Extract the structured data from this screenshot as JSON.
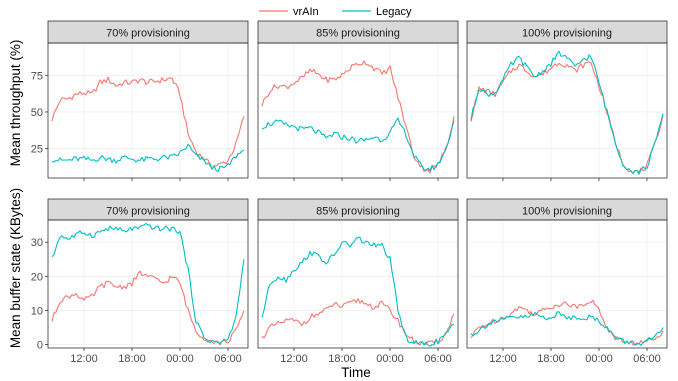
{
  "chart_data": {
    "type": "line",
    "facet_layout": "2 rows x 3 columns, shared x axis",
    "legend": {
      "placement": "top-center",
      "entries": [
        {
          "name": "vrAIn",
          "color": "#F8766D"
        },
        {
          "name": "Legacy",
          "color": "#00BFC4"
        }
      ]
    },
    "xlabel": "Time",
    "x_ticks": [
      "12:00",
      "18:00",
      "00:00",
      "06:00"
    ],
    "x_range_hours": [
      7.5,
      32.5
    ],
    "x_unit_note": "hours from 00:00 on day 1; 24 = 00:00 next day",
    "rows": [
      {
        "ylabel": "Mean throughput (%)",
        "ylim": [
          5,
          97
        ],
        "y_ticks": [
          25,
          50,
          75
        ],
        "panels": [
          {
            "strip": "70% provisioning",
            "series": [
              {
                "name": "vrAIn",
                "x": [
                  8,
                  9,
                  10,
                  11,
                  12,
                  13,
                  14,
                  15,
                  16,
                  17,
                  18,
                  19,
                  20,
                  21,
                  22,
                  23,
                  24,
                  25,
                  26,
                  27,
                  28,
                  29,
                  30,
                  31,
                  32
                ],
                "y": [
                  45,
                  58,
                  59,
                  62,
                  63,
                  62,
                  70,
                  72,
                  68,
                  70,
                  70,
                  72,
                  70,
                  71,
                  72,
                  73,
                  62,
                  35,
                  23,
                  18,
                  13,
                  14,
                  17,
                  28,
                  47
                ]
              },
              {
                "name": "Legacy",
                "x": [
                  8,
                  9,
                  10,
                  11,
                  12,
                  13,
                  14,
                  15,
                  16,
                  17,
                  18,
                  19,
                  20,
                  21,
                  22,
                  23,
                  24,
                  25,
                  26,
                  27,
                  28,
                  29,
                  30,
                  31,
                  32
                ],
                "y": [
                  18,
                  17,
                  17,
                  18,
                  18,
                  17,
                  19,
                  18,
                  17,
                  19,
                  18,
                  17,
                  18,
                  18,
                  19,
                  19,
                  22,
                  27,
                  20,
                  17,
                  12,
                  11,
                  13,
                  20,
                  24
                ]
              }
            ]
          },
          {
            "strip": "85% provisioning",
            "series": [
              {
                "name": "vrAIn",
                "x": [
                  8,
                  9,
                  10,
                  11,
                  12,
                  13,
                  14,
                  15,
                  16,
                  17,
                  18,
                  19,
                  20,
                  21,
                  22,
                  23,
                  24,
                  25,
                  26,
                  27,
                  28,
                  29,
                  30,
                  31,
                  32
                ],
                "y": [
                  55,
                  65,
                  68,
                  67,
                  70,
                  73,
                  78,
                  76,
                  72,
                  72,
                  75,
                  80,
                  83,
                  84,
                  80,
                  76,
                  80,
                  60,
                  40,
                  20,
                  12,
                  10,
                  14,
                  25,
                  47
                ]
              },
              {
                "name": "Legacy",
                "x": [
                  8,
                  9,
                  10,
                  11,
                  12,
                  13,
                  14,
                  15,
                  16,
                  17,
                  18,
                  19,
                  20,
                  21,
                  22,
                  23,
                  24,
                  25,
                  26,
                  27,
                  28,
                  29,
                  30,
                  31,
                  32
                ],
                "y": [
                  40,
                  42,
                  43,
                  41,
                  40,
                  38,
                  39,
                  36,
                  32,
                  35,
                  33,
                  32,
                  30,
                  31,
                  33,
                  31,
                  36,
                  44,
                  35,
                  20,
                  12,
                  11,
                  14,
                  25,
                  44
                ]
              }
            ]
          },
          {
            "strip": "100% provisioning",
            "series": [
              {
                "name": "vrAIn",
                "x": [
                  8,
                  9,
                  10,
                  11,
                  12,
                  13,
                  14,
                  15,
                  16,
                  17,
                  18,
                  19,
                  20,
                  21,
                  22,
                  23,
                  24,
                  25,
                  26,
                  27,
                  28,
                  29,
                  30,
                  31,
                  32
                ],
                "y": [
                  45,
                  66,
                  64,
                  62,
                  70,
                  78,
                  82,
                  78,
                  74,
                  76,
                  80,
                  84,
                  82,
                  78,
                  82,
                  84,
                  68,
                  50,
                  30,
                  15,
                  10,
                  9,
                  13,
                  28,
                  48
                ]
              },
              {
                "name": "Legacy",
                "x": [
                  8,
                  9,
                  10,
                  11,
                  12,
                  13,
                  14,
                  15,
                  16,
                  17,
                  18,
                  19,
                  20,
                  21,
                  22,
                  23,
                  24,
                  25,
                  26,
                  27,
                  28,
                  29,
                  30,
                  31,
                  32
                ],
                "y": [
                  45,
                  67,
                  62,
                  63,
                  72,
                  82,
                  87,
                  80,
                  74,
                  78,
                  83,
                  90,
                  87,
                  80,
                  86,
                  88,
                  70,
                  50,
                  30,
                  15,
                  10,
                  9,
                  13,
                  28,
                  49
                ]
              }
            ]
          }
        ]
      },
      {
        "ylabel": "Mean buffer state (KBytes)",
        "ylim": [
          -1,
          36.5
        ],
        "y_ticks": [
          0,
          10,
          20,
          30
        ],
        "panels": [
          {
            "strip": "70% provisioning",
            "series": [
              {
                "name": "vrAIn",
                "x": [
                  8,
                  9,
                  10,
                  11,
                  12,
                  13,
                  14,
                  15,
                  16,
                  17,
                  18,
                  19,
                  20,
                  21,
                  22,
                  23,
                  24,
                  25,
                  26,
                  27,
                  28,
                  29,
                  30,
                  31,
                  32
                ],
                "y": [
                  7,
                  13,
                  14,
                  15,
                  13,
                  14,
                  17,
                  18,
                  17,
                  17,
                  18,
                  21,
                  20,
                  19,
                  18,
                  20,
                  18,
                  10,
                  4,
                  2,
                  1,
                  0.5,
                  1,
                  4,
                  10
                ]
              },
              {
                "name": "Legacy",
                "x": [
                  8,
                  9,
                  10,
                  11,
                  12,
                  13,
                  14,
                  15,
                  16,
                  17,
                  18,
                  19,
                  20,
                  21,
                  22,
                  23,
                  24,
                  25,
                  26,
                  27,
                  28,
                  29,
                  30,
                  31,
                  32
                ],
                "y": [
                  25,
                  32,
                  31,
                  32,
                  33,
                  32,
                  33,
                  34,
                  34,
                  33,
                  34,
                  34,
                  35,
                  34,
                  34,
                  34,
                  33,
                  22,
                  7,
                  2,
                  1,
                  0.5,
                  1.5,
                  8,
                  25
                ]
              }
            ]
          },
          {
            "strip": "85% provisioning",
            "series": [
              {
                "name": "vrAIn",
                "x": [
                  8,
                  9,
                  10,
                  11,
                  12,
                  13,
                  14,
                  15,
                  16,
                  17,
                  18,
                  19,
                  20,
                  21,
                  22,
                  23,
                  24,
                  25,
                  26,
                  27,
                  28,
                  29,
                  30,
                  31,
                  32
                ],
                "y": [
                  2,
                  5,
                  6,
                  7,
                  7,
                  6,
                  8,
                  9,
                  10,
                  12,
                  11,
                  12,
                  13,
                  12,
                  11,
                  12,
                  10,
                  7,
                  3,
                  1,
                  0.3,
                  0.2,
                  1,
                  3,
                  9
                ]
              },
              {
                "name": "Legacy",
                "x": [
                  8,
                  9,
                  10,
                  11,
                  12,
                  13,
                  14,
                  15,
                  16,
                  17,
                  18,
                  19,
                  20,
                  21,
                  22,
                  23,
                  24,
                  25,
                  26,
                  27,
                  28,
                  29,
                  30,
                  31,
                  32
                ],
                "y": [
                  8,
                  18,
                  20,
                  19,
                  22,
                  24,
                  27,
                  26,
                  24,
                  26,
                  30,
                  29,
                  31,
                  30,
                  29,
                  29,
                  25,
                  10,
                  2,
                  0.5,
                  0.2,
                  0.2,
                  1,
                  3,
                  6
                ]
              }
            ]
          },
          {
            "strip": "100% provisioning",
            "series": [
              {
                "name": "vrAIn",
                "x": [
                  8,
                  9,
                  10,
                  11,
                  12,
                  13,
                  14,
                  15,
                  16,
                  17,
                  18,
                  19,
                  20,
                  21,
                  22,
                  23,
                  24,
                  25,
                  26,
                  27,
                  28,
                  29,
                  30,
                  31,
                  32
                ],
                "y": [
                  2,
                  5,
                  6,
                  7,
                  8,
                  9,
                  11,
                  10,
                  9,
                  10,
                  11,
                  12,
                  12,
                  11,
                  12,
                  13,
                  10,
                  5,
                  2,
                  1,
                  0.5,
                  0.3,
                  1,
                  2,
                  4
                ]
              },
              {
                "name": "Legacy",
                "x": [
                  8,
                  9,
                  10,
                  11,
                  12,
                  13,
                  14,
                  15,
                  16,
                  17,
                  18,
                  19,
                  20,
                  21,
                  22,
                  23,
                  24,
                  25,
                  26,
                  27,
                  28,
                  29,
                  30,
                  31,
                  32
                ],
                "y": [
                  3,
                  4,
                  6,
                  7,
                  7,
                  8,
                  8,
                  8,
                  9,
                  8,
                  8,
                  9,
                  8,
                  8,
                  8,
                  8,
                  7,
                  5,
                  2,
                  1,
                  0.5,
                  0.3,
                  1,
                  2,
                  5
                ]
              }
            ]
          }
        ]
      }
    ]
  }
}
